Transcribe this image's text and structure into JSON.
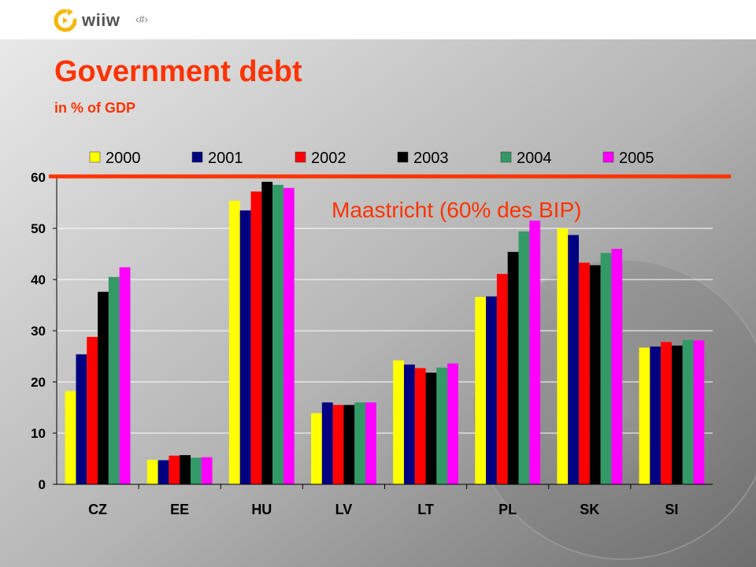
{
  "header": {
    "logo_text": "wiiw",
    "page_number": "‹#›"
  },
  "slide": {
    "title": "Government debt",
    "subtitle": "in % of GDP"
  },
  "chart_data": {
    "type": "bar",
    "categories": [
      "CZ",
      "EE",
      "HU",
      "LV",
      "LT",
      "PL",
      "SK",
      "SI"
    ],
    "series": [
      {
        "name": "2000",
        "color": "#ffff00",
        "values": [
          18.2,
          4.8,
          55.4,
          13.9,
          24.2,
          36.6,
          50.0,
          26.7
        ]
      },
      {
        "name": "2001",
        "color": "#000080",
        "values": [
          25.4,
          4.7,
          53.5,
          16.0,
          23.4,
          36.7,
          48.7,
          26.9
        ]
      },
      {
        "name": "2002",
        "color": "#ff0000",
        "values": [
          28.8,
          5.6,
          57.2,
          15.5,
          22.7,
          41.1,
          43.3,
          27.8
        ]
      },
      {
        "name": "2003",
        "color": "#000000",
        "values": [
          37.6,
          5.7,
          59.1,
          15.5,
          21.8,
          45.4,
          42.8,
          27.1
        ]
      },
      {
        "name": "2004",
        "color": "#339966",
        "values": [
          40.5,
          5.2,
          58.5,
          16.0,
          22.8,
          49.4,
          45.2,
          28.2
        ]
      },
      {
        "name": "2005",
        "color": "#ff00ff",
        "values": [
          42.4,
          5.3,
          57.9,
          16.0,
          23.6,
          51.5,
          46.0,
          28.1
        ]
      }
    ],
    "ylim": [
      0,
      60
    ],
    "yticks": [
      0,
      10,
      20,
      30,
      40,
      50,
      60
    ],
    "grid": true,
    "legend": "top",
    "reference_line": {
      "value": 60,
      "label": "Maastricht (60% des BIP)",
      "color": "#ff3300"
    }
  }
}
